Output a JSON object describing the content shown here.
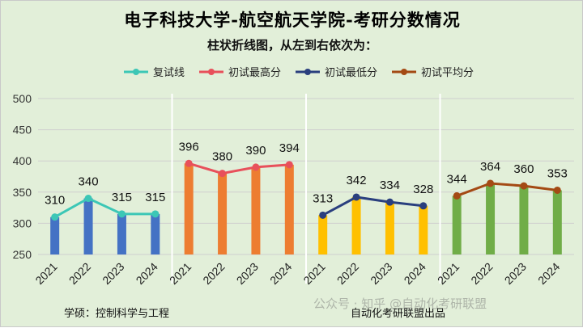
{
  "title": "电子科技大学-航空航天学院-考研分数情况",
  "subtitle": "柱状折线图，从左到右依次为：",
  "footer_left": "学硕：控制科学与工程",
  "footer_mid": "自动化考研联盟出品",
  "watermark": "公众号 · 知乎 @自动化考研联盟",
  "colors": {
    "background": "#e2efd9",
    "gridline": "#cfcfcf",
    "separator": "#ffffff"
  },
  "chart_data": {
    "type": "bar+line",
    "ylim": [
      250,
      500
    ],
    "yticks": [
      250,
      300,
      350,
      400,
      450,
      500
    ],
    "categories": [
      "2021",
      "2022",
      "2023",
      "2024"
    ],
    "legend": [
      {
        "name": "复试线",
        "color": "#3cc7b6"
      },
      {
        "name": "初试最高分",
        "color": "#e8505b"
      },
      {
        "name": "初试最低分",
        "color": "#2a3f7e"
      },
      {
        "name": "初试平均分",
        "color": "#a44a14"
      }
    ],
    "series": [
      {
        "name": "复试线",
        "values": [
          310,
          340,
          315,
          315
        ],
        "bar_color": "#4472c4",
        "line_color": "#3cc7b6"
      },
      {
        "name": "初试最高分",
        "values": [
          396,
          380,
          390,
          394
        ],
        "bar_color": "#ed7d31",
        "line_color": "#e8505b"
      },
      {
        "name": "初试最低分",
        "values": [
          313,
          342,
          334,
          328
        ],
        "bar_color": "#ffc000",
        "line_color": "#2a3f7e"
      },
      {
        "name": "初试平均分",
        "values": [
          344,
          364,
          360,
          353
        ],
        "bar_color": "#70ad47",
        "line_color": "#a44a14"
      }
    ]
  }
}
